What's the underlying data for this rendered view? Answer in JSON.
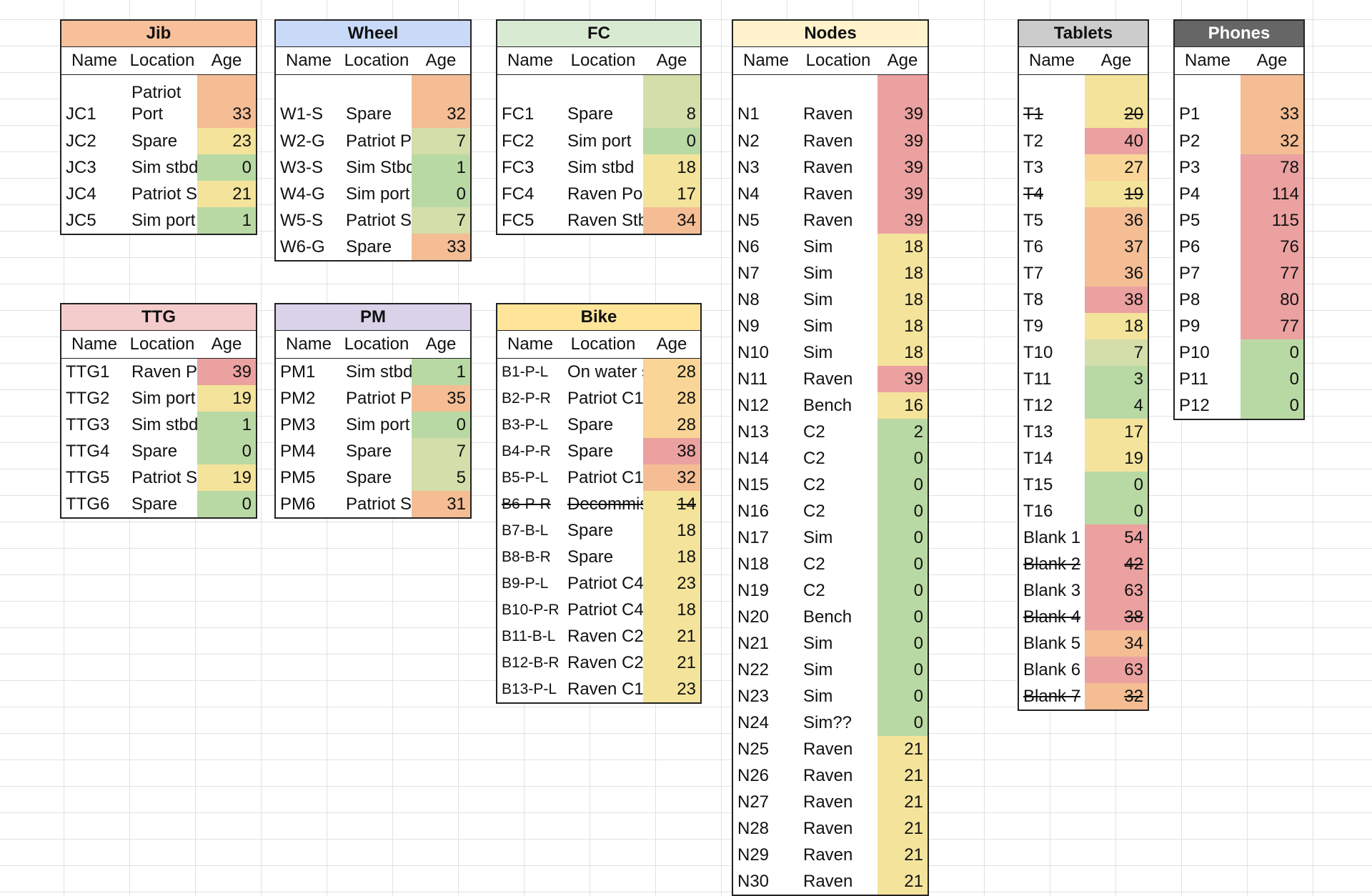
{
  "colors": {
    "red": "#eba1a0",
    "orange": "#f4bd94",
    "lightorange": "#f9d597",
    "yellow": "#f4e39b",
    "lightgreen": "#d3deaa",
    "green": "#b9d9a4"
  },
  "tables": {
    "jib": {
      "title": "Jib",
      "header_bg": "#f8c09a",
      "cols": [
        "Name",
        "Location",
        "Age"
      ],
      "rows": [
        {
          "name": "JC1",
          "loc": "Patriot Port",
          "age": "33",
          "c": "orange",
          "tall": true
        },
        {
          "name": "JC2",
          "loc": "Spare",
          "age": "23",
          "c": "yellow"
        },
        {
          "name": "JC3",
          "loc": "Sim stbd",
          "age": "0",
          "c": "green"
        },
        {
          "name": "JC4",
          "loc": "Patriot St",
          "age": "21",
          "c": "yellow"
        },
        {
          "name": "JC5",
          "loc": "Sim port",
          "age": "1",
          "c": "green"
        }
      ]
    },
    "wheel": {
      "title": "Wheel",
      "header_bg": "#c9daf8",
      "cols": [
        "Name",
        "Location",
        "Age"
      ],
      "rows": [
        {
          "name": "W1-S",
          "loc": "Spare",
          "age": "32",
          "c": "orange",
          "tall": true
        },
        {
          "name": "W2-G",
          "loc": "Patriot Po",
          "age": "7",
          "c": "lightgreen"
        },
        {
          "name": "W3-S",
          "loc": "Sim Stbd",
          "age": "1",
          "c": "green"
        },
        {
          "name": "W4-G",
          "loc": "Sim port",
          "age": "0",
          "c": "green"
        },
        {
          "name": "W5-S",
          "loc": "Patriot St",
          "age": "7",
          "c": "lightgreen"
        },
        {
          "name": "W6-G",
          "loc": "Spare",
          "age": "33",
          "c": "orange"
        }
      ]
    },
    "fc": {
      "title": "FC",
      "header_bg": "#d9ead3",
      "cols": [
        "Name",
        "Location",
        "Age"
      ],
      "rows": [
        {
          "name": "FC1",
          "loc": "Spare",
          "age": "8",
          "c": "lightgreen",
          "tall": true
        },
        {
          "name": "FC2",
          "loc": "Sim port",
          "age": "0",
          "c": "green"
        },
        {
          "name": "FC3",
          "loc": "Sim stbd",
          "age": "18",
          "c": "yellow"
        },
        {
          "name": "FC4",
          "loc": "Raven Por",
          "age": "17",
          "c": "yellow"
        },
        {
          "name": "FC5",
          "loc": "Raven Stb",
          "age": "34",
          "c": "orange"
        }
      ]
    },
    "ttg": {
      "title": "TTG",
      "header_bg": "#f4cccc",
      "cols": [
        "Name",
        "Location",
        "Age"
      ],
      "rows": [
        {
          "name": "TTG1",
          "loc": "Raven Po",
          "age": "39",
          "c": "red"
        },
        {
          "name": "TTG2",
          "loc": "Sim port",
          "age": "19",
          "c": "yellow"
        },
        {
          "name": "TTG3",
          "loc": "Sim stbd",
          "age": "1",
          "c": "green"
        },
        {
          "name": "TTG4",
          "loc": "Spare",
          "age": "0",
          "c": "green"
        },
        {
          "name": "TTG5",
          "loc": "Patriot St",
          "age": "19",
          "c": "yellow"
        },
        {
          "name": "TTG6",
          "loc": "Spare",
          "age": "0",
          "c": "green"
        }
      ]
    },
    "pm": {
      "title": "PM",
      "header_bg": "#d9d2e9",
      "cols": [
        "Name",
        "Location",
        "Age"
      ],
      "rows": [
        {
          "name": "PM1",
          "loc": "Sim stbd",
          "age": "1",
          "c": "green"
        },
        {
          "name": "PM2",
          "loc": "Patriot Po",
          "age": "35",
          "c": "orange"
        },
        {
          "name": "PM3",
          "loc": "Sim port",
          "age": "0",
          "c": "green"
        },
        {
          "name": "PM4",
          "loc": "Spare",
          "age": "7",
          "c": "lightgreen"
        },
        {
          "name": "PM5",
          "loc": "Spare",
          "age": "5",
          "c": "lightgreen"
        },
        {
          "name": "PM6",
          "loc": "Patriot St",
          "age": "31",
          "c": "orange"
        }
      ]
    },
    "bike": {
      "title": "Bike",
      "header_bg": "#ffe599",
      "cols": [
        "Name",
        "Location",
        "Age"
      ],
      "rows": [
        {
          "name": "B1-P-L",
          "loc": "On water s",
          "age": "28",
          "c": "lightorange"
        },
        {
          "name": "B2-P-R",
          "loc": "Patriot C1",
          "age": "28",
          "c": "lightorange"
        },
        {
          "name": "B3-P-L",
          "loc": "Spare",
          "age": "28",
          "c": "lightorange"
        },
        {
          "name": "B4-P-R",
          "loc": "Spare",
          "age": "38",
          "c": "red"
        },
        {
          "name": "B5-P-L",
          "loc": "Patriot C1",
          "age": "32",
          "c": "orange"
        },
        {
          "name": "B6-P-R",
          "loc": "Decommis",
          "age": "14",
          "c": "yellow",
          "strike": true
        },
        {
          "name": "B7-B-L",
          "loc": "Spare",
          "age": "18",
          "c": "yellow"
        },
        {
          "name": "B8-B-R",
          "loc": "Spare",
          "age": "18",
          "c": "yellow"
        },
        {
          "name": "B9-P-L",
          "loc": "Patriot C4",
          "age": "23",
          "c": "yellow"
        },
        {
          "name": "B10-P-R",
          "loc": "Patriot C4",
          "age": "18",
          "c": "yellow"
        },
        {
          "name": "B11-B-L",
          "loc": "Raven C2",
          "age": "21",
          "c": "yellow"
        },
        {
          "name": "B12-B-R",
          "loc": "Raven C2",
          "age": "21",
          "c": "yellow"
        },
        {
          "name": "B13-P-L",
          "loc": "Raven C1",
          "age": "23",
          "c": "yellow"
        }
      ]
    },
    "nodes": {
      "title": "Nodes",
      "header_bg": "#fff2cc",
      "cols": [
        "Name",
        "Location",
        "Age"
      ],
      "rows": [
        {
          "name": "N1",
          "loc": "Raven",
          "age": "39",
          "c": "red",
          "tall": true
        },
        {
          "name": "N2",
          "loc": "Raven",
          "age": "39",
          "c": "red"
        },
        {
          "name": "N3",
          "loc": "Raven",
          "age": "39",
          "c": "red"
        },
        {
          "name": "N4",
          "loc": "Raven",
          "age": "39",
          "c": "red"
        },
        {
          "name": "N5",
          "loc": "Raven",
          "age": "39",
          "c": "red"
        },
        {
          "name": "N6",
          "loc": "Sim",
          "age": "18",
          "c": "yellow"
        },
        {
          "name": "N7",
          "loc": "Sim",
          "age": "18",
          "c": "yellow"
        },
        {
          "name": "N8",
          "loc": "Sim",
          "age": "18",
          "c": "yellow"
        },
        {
          "name": "N9",
          "loc": "Sim",
          "age": "18",
          "c": "yellow"
        },
        {
          "name": "N10",
          "loc": "Sim",
          "age": "18",
          "c": "yellow"
        },
        {
          "name": "N11",
          "loc": "Raven",
          "age": "39",
          "c": "red"
        },
        {
          "name": "N12",
          "loc": "Bench",
          "age": "16",
          "c": "yellow"
        },
        {
          "name": "N13",
          "loc": "C2",
          "age": "2",
          "c": "green"
        },
        {
          "name": "N14",
          "loc": "C2",
          "age": "0",
          "c": "green"
        },
        {
          "name": "N15",
          "loc": "C2",
          "age": "0",
          "c": "green"
        },
        {
          "name": "N16",
          "loc": "C2",
          "age": "0",
          "c": "green"
        },
        {
          "name": "N17",
          "loc": "Sim",
          "age": "0",
          "c": "green"
        },
        {
          "name": "N18",
          "loc": "C2",
          "age": "0",
          "c": "green"
        },
        {
          "name": "N19",
          "loc": "C2",
          "age": "0",
          "c": "green"
        },
        {
          "name": "N20",
          "loc": "Bench",
          "age": "0",
          "c": "green"
        },
        {
          "name": "N21",
          "loc": "Sim",
          "age": "0",
          "c": "green"
        },
        {
          "name": "N22",
          "loc": "Sim",
          "age": "0",
          "c": "green"
        },
        {
          "name": "N23",
          "loc": "Sim",
          "age": "0",
          "c": "green"
        },
        {
          "name": "N24",
          "loc": "Sim??",
          "age": "0",
          "c": "green"
        },
        {
          "name": "N25",
          "loc": "Raven",
          "age": "21",
          "c": "yellow"
        },
        {
          "name": "N26",
          "loc": "Raven",
          "age": "21",
          "c": "yellow"
        },
        {
          "name": "N27",
          "loc": "Raven",
          "age": "21",
          "c": "yellow"
        },
        {
          "name": "N28",
          "loc": "Raven",
          "age": "21",
          "c": "yellow"
        },
        {
          "name": "N29",
          "loc": "Raven",
          "age": "21",
          "c": "yellow"
        },
        {
          "name": "N30",
          "loc": "Raven",
          "age": "21",
          "c": "yellow"
        }
      ]
    },
    "tablets": {
      "title": "Tablets",
      "header_bg": "#cccccc",
      "cols": [
        "Name",
        "Age"
      ],
      "rows": [
        {
          "name": "T1",
          "age": "20",
          "c": "yellow",
          "tall": true,
          "strike": true
        },
        {
          "name": "T2",
          "age": "40",
          "c": "red"
        },
        {
          "name": "T3",
          "age": "27",
          "c": "lightorange"
        },
        {
          "name": "T4",
          "age": "19",
          "c": "yellow",
          "strike": true
        },
        {
          "name": "T5",
          "age": "36",
          "c": "orange"
        },
        {
          "name": "T6",
          "age": "37",
          "c": "orange"
        },
        {
          "name": "T7",
          "age": "36",
          "c": "orange"
        },
        {
          "name": "T8",
          "age": "38",
          "c": "red"
        },
        {
          "name": "T9",
          "age": "18",
          "c": "yellow"
        },
        {
          "name": "T10",
          "age": "7",
          "c": "lightgreen"
        },
        {
          "name": "T11",
          "age": "3",
          "c": "green"
        },
        {
          "name": "T12",
          "age": "4",
          "c": "green"
        },
        {
          "name": "T13",
          "age": "17",
          "c": "yellow"
        },
        {
          "name": "T14",
          "age": "19",
          "c": "yellow"
        },
        {
          "name": "T15",
          "age": "0",
          "c": "green"
        },
        {
          "name": "T16",
          "age": "0",
          "c": "green"
        },
        {
          "name": "Blank 1",
          "age": "54",
          "c": "red"
        },
        {
          "name": "Blank 2",
          "age": "42",
          "c": "red",
          "strike": true
        },
        {
          "name": "Blank 3",
          "age": "63",
          "c": "red"
        },
        {
          "name": "Blank 4",
          "age": "38",
          "c": "red",
          "strike": true
        },
        {
          "name": "Blank 5",
          "age": "34",
          "c": "orange"
        },
        {
          "name": "Blank 6",
          "age": "63",
          "c": "red"
        },
        {
          "name": "Blank 7",
          "age": "32",
          "c": "orange",
          "strike": true
        }
      ]
    },
    "phones": {
      "title": "Phones",
      "header_bg": "#666666",
      "header_fg": "#ffffff",
      "cols": [
        "Name",
        "Age"
      ],
      "rows": [
        {
          "name": "P1",
          "age": "33",
          "c": "orange",
          "tall": true
        },
        {
          "name": "P2",
          "age": "32",
          "c": "orange"
        },
        {
          "name": "P3",
          "age": "78",
          "c": "red"
        },
        {
          "name": "P4",
          "age": "114",
          "c": "red"
        },
        {
          "name": "P5",
          "age": "115",
          "c": "red"
        },
        {
          "name": "P6",
          "age": "76",
          "c": "red"
        },
        {
          "name": "P7",
          "age": "77",
          "c": "red"
        },
        {
          "name": "P8",
          "age": "80",
          "c": "red"
        },
        {
          "name": "P9",
          "age": "77",
          "c": "red"
        },
        {
          "name": "P10",
          "age": "0",
          "c": "green"
        },
        {
          "name": "P11",
          "age": "0",
          "c": "green"
        },
        {
          "name": "P12",
          "age": "0",
          "c": "green"
        }
      ]
    }
  }
}
